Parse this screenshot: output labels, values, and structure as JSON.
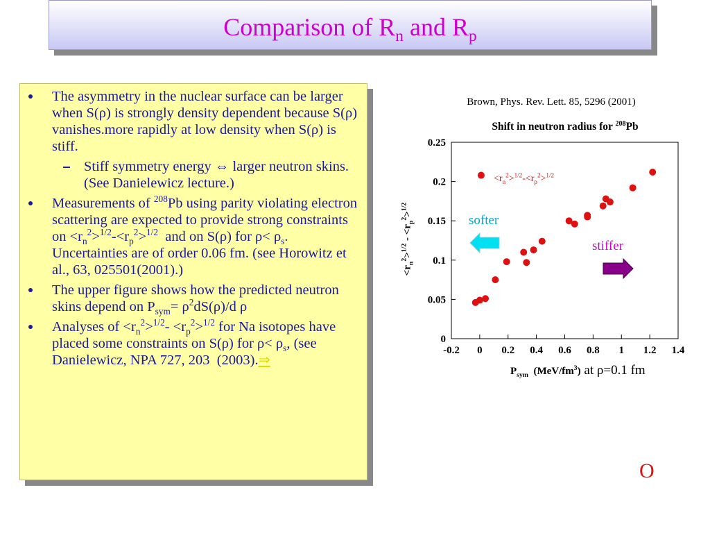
{
  "title": [
    "Comparison of R",
    {
      "sub": "n"
    },
    " and R",
    {
      "sub": "p"
    }
  ],
  "bullets": [
    {
      "level": 1,
      "runs": [
        "The asymmetry in the nuclear surface can be larger when S(ρ) is strongly density dependent because S(ρ) vanishes.more rapidly at low density when S(ρ) is stiff."
      ]
    },
    {
      "level": 2,
      "runs": [
        "Stiff symmetry energy ⇔ larger neutron skins. (See Danielewicz lecture.)"
      ]
    },
    {
      "level": 1,
      "runs": [
        "Measurements of ",
        {
          "sup": "208"
        },
        "Pb using parity violating electron scattering are expected to provide strong constraints on <r",
        {
          "sub": "n"
        },
        {
          "sup": "2"
        },
        ">",
        {
          "sup": "1/2"
        },
        "-<r",
        {
          "sub": "p"
        },
        {
          "sup": "2"
        },
        ">",
        {
          "sup": "1/2"
        },
        "  and on S(ρ) for ρ< ρ",
        {
          "sub": "s"
        },
        ". Uncertainties are of order 0.06 fm. (see Horowitz et al., 63, 025501(2001).)"
      ]
    },
    {
      "level": 1,
      "runs": [
        "The upper figure shows how the predicted neutron skins depend on P",
        {
          "sub": "sym"
        },
        "= ρ",
        {
          "sup": "2"
        },
        "dS(ρ)/d ρ"
      ]
    },
    {
      "level": 1,
      "runs": [
        "Analyses of <r",
        {
          "sub": "n"
        },
        {
          "sup": "2"
        },
        ">",
        {
          "sup": "1/2"
        },
        "- <r",
        {
          "sub": "p"
        },
        {
          "sup": "2"
        },
        ">",
        {
          "sup": "1/2"
        },
        " for Na isotopes have placed some constraints on S(ρ) for ρ< ρ",
        {
          "sub": "s"
        },
        ", (see Danielewicz, NPA 727, 203  (2003).",
        {
          "link": "⇒"
        }
      ]
    }
  ],
  "corner_mark": "O",
  "chart_data": {
    "type": "scatter",
    "source": "Brown, Phys. Rev. Lett. 85, 5296 (2001)",
    "title": [
      "Shift in neutron radius for ",
      {
        "sup": "208"
      },
      "Pb"
    ],
    "y_label": [
      "<r",
      {
        "sub": "n"
      },
      {
        "sup": "2"
      },
      ">",
      {
        "sup": "1/2"
      },
      " - <r",
      {
        "sub": "p"
      },
      {
        "sup": "2"
      },
      ">",
      {
        "sup": "1/2"
      }
    ],
    "x_label": [
      "P",
      {
        "sub": "sym"
      },
      "  (MeV/fm",
      {
        "sup": "3"
      },
      ")"
    ],
    "x_note": " at ρ=0.1 fm",
    "curve_label": [
      "<r",
      {
        "sub": "n"
      },
      {
        "sup": "2"
      },
      ">",
      {
        "sup": "1/2"
      },
      "-<r",
      {
        "sub": "p"
      },
      {
        "sup": "2"
      },
      ">",
      {
        "sup": "1/2"
      }
    ],
    "softer": "softer",
    "stiffer": "stiffer",
    "color": "#dd1111",
    "x": [
      0.01,
      -0.03,
      0.0,
      0.04,
      0.11,
      0.19,
      0.31,
      0.33,
      0.38,
      0.44,
      0.63,
      0.67,
      0.76,
      0.76,
      0.87,
      0.89,
      0.92,
      1.08,
      1.22
    ],
    "values": [
      0.208,
      0.046,
      0.049,
      0.051,
      0.075,
      0.098,
      0.11,
      0.097,
      0.113,
      0.124,
      0.15,
      0.146,
      0.157,
      0.155,
      0.169,
      0.178,
      0.174,
      0.192,
      0.212
    ],
    "xlim": [
      -0.2,
      1.4
    ],
    "xticks": [
      -0.2,
      0,
      0.2,
      0.4,
      0.6,
      0.8,
      1,
      1.2,
      1.4
    ],
    "ylim": [
      0,
      0.25
    ],
    "yticks": [
      0,
      0.05,
      0.1,
      0.15,
      0.2,
      0.25
    ]
  }
}
